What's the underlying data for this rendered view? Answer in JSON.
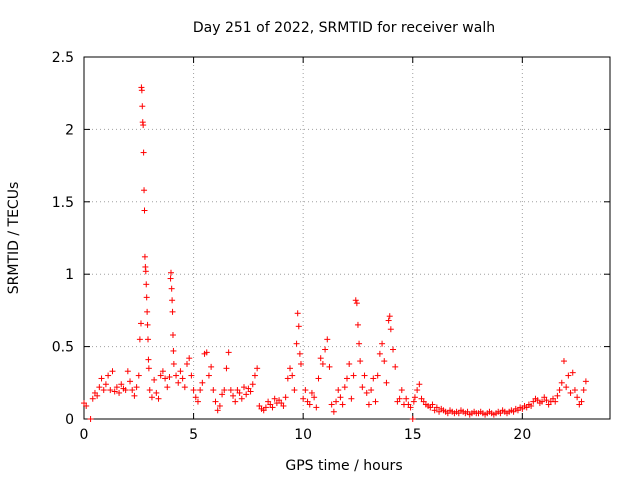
{
  "chart_data": {
    "type": "scatter",
    "title": "Day 251 of 2022, SRMTID for receiver walh",
    "xlabel": "GPS time / hours",
    "ylabel": "SRMTID / TECUs",
    "xlim": [
      0,
      24
    ],
    "ylim": [
      0,
      2.5
    ],
    "x_ticks": [
      0,
      5,
      10,
      15,
      20
    ],
    "y_ticks": [
      0,
      0.5,
      1,
      1.5,
      2,
      2.5
    ],
    "x_tick_labels": [
      "0",
      "5",
      "10",
      "15",
      "20"
    ],
    "y_tick_labels": [
      "0",
      "0.5",
      "1",
      "1.5",
      "2",
      "2.5"
    ],
    "grid": true,
    "marker": "+",
    "color": "#ff0000",
    "series": [
      {
        "name": "SRMTID",
        "points": [
          [
            0.0,
            0.11
          ],
          [
            0.1,
            0.09
          ],
          [
            0.3,
            0.0
          ],
          [
            0.4,
            0.14
          ],
          [
            0.5,
            0.18
          ],
          [
            0.6,
            0.16
          ],
          [
            0.7,
            0.22
          ],
          [
            0.8,
            0.28
          ],
          [
            0.9,
            0.2
          ],
          [
            1.0,
            0.24
          ],
          [
            1.1,
            0.3
          ],
          [
            1.2,
            0.2
          ],
          [
            1.3,
            0.33
          ],
          [
            1.4,
            0.19
          ],
          [
            1.5,
            0.22
          ],
          [
            1.6,
            0.18
          ],
          [
            1.7,
            0.24
          ],
          [
            1.8,
            0.21
          ],
          [
            1.9,
            0.2
          ],
          [
            2.0,
            0.33
          ],
          [
            2.1,
            0.26
          ],
          [
            2.2,
            0.2
          ],
          [
            2.3,
            0.16
          ],
          [
            2.4,
            0.22
          ],
          [
            2.5,
            0.3
          ],
          [
            2.55,
            0.55
          ],
          [
            2.6,
            0.66
          ],
          [
            2.62,
            2.29
          ],
          [
            2.64,
            2.27
          ],
          [
            2.66,
            2.16
          ],
          [
            2.68,
            2.05
          ],
          [
            2.7,
            2.03
          ],
          [
            2.72,
            1.84
          ],
          [
            2.74,
            1.58
          ],
          [
            2.76,
            1.44
          ],
          [
            2.78,
            1.12
          ],
          [
            2.8,
            1.05
          ],
          [
            2.82,
            1.02
          ],
          [
            2.84,
            0.93
          ],
          [
            2.86,
            0.84
          ],
          [
            2.88,
            0.74
          ],
          [
            2.9,
            0.65
          ],
          [
            2.92,
            0.55
          ],
          [
            2.94,
            0.41
          ],
          [
            2.96,
            0.35
          ],
          [
            3.0,
            0.2
          ],
          [
            3.1,
            0.15
          ],
          [
            3.2,
            0.27
          ],
          [
            3.3,
            0.18
          ],
          [
            3.4,
            0.14
          ],
          [
            3.5,
            0.3
          ],
          [
            3.6,
            0.33
          ],
          [
            3.7,
            0.28
          ],
          [
            3.8,
            0.22
          ],
          [
            3.9,
            0.29
          ],
          [
            3.95,
            0.97
          ],
          [
            3.97,
            1.01
          ],
          [
            4.0,
            0.9
          ],
          [
            4.02,
            0.82
          ],
          [
            4.04,
            0.74
          ],
          [
            4.06,
            0.58
          ],
          [
            4.08,
            0.47
          ],
          [
            4.1,
            0.38
          ],
          [
            4.2,
            0.3
          ],
          [
            4.3,
            0.25
          ],
          [
            4.4,
            0.33
          ],
          [
            4.5,
            0.28
          ],
          [
            4.6,
            0.22
          ],
          [
            4.7,
            0.38
          ],
          [
            4.8,
            0.42
          ],
          [
            4.9,
            0.3
          ],
          [
            5.0,
            0.2
          ],
          [
            5.1,
            0.15
          ],
          [
            5.2,
            0.12
          ],
          [
            5.3,
            0.2
          ],
          [
            5.4,
            0.25
          ],
          [
            5.5,
            0.45
          ],
          [
            5.6,
            0.46
          ],
          [
            5.7,
            0.3
          ],
          [
            5.8,
            0.36
          ],
          [
            5.9,
            0.2
          ],
          [
            6.0,
            0.12
          ],
          [
            6.1,
            0.06
          ],
          [
            6.2,
            0.09
          ],
          [
            6.3,
            0.17
          ],
          [
            6.4,
            0.2
          ],
          [
            6.5,
            0.35
          ],
          [
            6.6,
            0.46
          ],
          [
            6.7,
            0.2
          ],
          [
            6.8,
            0.16
          ],
          [
            6.9,
            0.12
          ],
          [
            7.0,
            0.2
          ],
          [
            7.1,
            0.18
          ],
          [
            7.2,
            0.14
          ],
          [
            7.3,
            0.22
          ],
          [
            7.4,
            0.17
          ],
          [
            7.5,
            0.21
          ],
          [
            7.6,
            0.19
          ],
          [
            7.7,
            0.24
          ],
          [
            7.8,
            0.3
          ],
          [
            7.9,
            0.35
          ],
          [
            8.0,
            0.09
          ],
          [
            8.1,
            0.07
          ],
          [
            8.2,
            0.06
          ],
          [
            8.3,
            0.08
          ],
          [
            8.4,
            0.12
          ],
          [
            8.5,
            0.1
          ],
          [
            8.6,
            0.08
          ],
          [
            8.7,
            0.14
          ],
          [
            8.8,
            0.11
          ],
          [
            8.9,
            0.13
          ],
          [
            9.0,
            0.11
          ],
          [
            9.1,
            0.09
          ],
          [
            9.2,
            0.15
          ],
          [
            9.3,
            0.28
          ],
          [
            9.4,
            0.35
          ],
          [
            9.5,
            0.3
          ],
          [
            9.6,
            0.2
          ],
          [
            9.7,
            0.52
          ],
          [
            9.75,
            0.73
          ],
          [
            9.8,
            0.64
          ],
          [
            9.85,
            0.45
          ],
          [
            9.9,
            0.38
          ],
          [
            10.0,
            0.14
          ],
          [
            10.1,
            0.2
          ],
          [
            10.2,
            0.12
          ],
          [
            10.3,
            0.1
          ],
          [
            10.4,
            0.18
          ],
          [
            10.5,
            0.15
          ],
          [
            10.6,
            0.08
          ],
          [
            10.7,
            0.28
          ],
          [
            10.8,
            0.42
          ],
          [
            10.9,
            0.38
          ],
          [
            11.0,
            0.48
          ],
          [
            11.1,
            0.55
          ],
          [
            11.2,
            0.36
          ],
          [
            11.3,
            0.1
          ],
          [
            11.4,
            0.05
          ],
          [
            11.5,
            0.12
          ],
          [
            11.6,
            0.2
          ],
          [
            11.7,
            0.15
          ],
          [
            11.8,
            0.1
          ],
          [
            11.9,
            0.22
          ],
          [
            12.0,
            0.28
          ],
          [
            12.1,
            0.38
          ],
          [
            12.2,
            0.14
          ],
          [
            12.3,
            0.3
          ],
          [
            12.4,
            0.82
          ],
          [
            12.45,
            0.8
          ],
          [
            12.5,
            0.65
          ],
          [
            12.55,
            0.52
          ],
          [
            12.6,
            0.4
          ],
          [
            12.7,
            0.22
          ],
          [
            12.8,
            0.3
          ],
          [
            12.9,
            0.18
          ],
          [
            13.0,
            0.1
          ],
          [
            13.1,
            0.2
          ],
          [
            13.2,
            0.28
          ],
          [
            13.3,
            0.12
          ],
          [
            13.4,
            0.3
          ],
          [
            13.5,
            0.45
          ],
          [
            13.6,
            0.52
          ],
          [
            13.7,
            0.4
          ],
          [
            13.8,
            0.25
          ],
          [
            13.9,
            0.68
          ],
          [
            13.95,
            0.71
          ],
          [
            14.0,
            0.62
          ],
          [
            14.1,
            0.48
          ],
          [
            14.2,
            0.36
          ],
          [
            14.3,
            0.12
          ],
          [
            14.4,
            0.14
          ],
          [
            14.5,
            0.2
          ],
          [
            14.6,
            0.1
          ],
          [
            14.7,
            0.14
          ],
          [
            14.8,
            0.1
          ],
          [
            14.9,
            0.08
          ],
          [
            15.0,
            0.0
          ],
          [
            15.05,
            0.12
          ],
          [
            15.1,
            0.15
          ],
          [
            15.2,
            0.2
          ],
          [
            15.3,
            0.24
          ],
          [
            15.4,
            0.14
          ],
          [
            15.5,
            0.12
          ],
          [
            15.6,
            0.1
          ],
          [
            15.7,
            0.09
          ],
          [
            15.8,
            0.08
          ],
          [
            15.9,
            0.1
          ],
          [
            16.0,
            0.06
          ],
          [
            16.1,
            0.08
          ],
          [
            16.2,
            0.05
          ],
          [
            16.3,
            0.07
          ],
          [
            16.4,
            0.06
          ],
          [
            16.5,
            0.05
          ],
          [
            16.6,
            0.04
          ],
          [
            16.7,
            0.06
          ],
          [
            16.8,
            0.05
          ],
          [
            16.9,
            0.04
          ],
          [
            17.0,
            0.05
          ],
          [
            17.1,
            0.04
          ],
          [
            17.2,
            0.06
          ],
          [
            17.3,
            0.05
          ],
          [
            17.4,
            0.04
          ],
          [
            17.5,
            0.05
          ],
          [
            17.6,
            0.03
          ],
          [
            17.7,
            0.04
          ],
          [
            17.8,
            0.05
          ],
          [
            17.9,
            0.04
          ],
          [
            18.0,
            0.04
          ],
          [
            18.1,
            0.05
          ],
          [
            18.2,
            0.04
          ],
          [
            18.3,
            0.03
          ],
          [
            18.4,
            0.04
          ],
          [
            18.5,
            0.05
          ],
          [
            18.6,
            0.04
          ],
          [
            18.7,
            0.03
          ],
          [
            18.8,
            0.04
          ],
          [
            18.9,
            0.05
          ],
          [
            19.0,
            0.04
          ],
          [
            19.1,
            0.06
          ],
          [
            19.2,
            0.05
          ],
          [
            19.3,
            0.04
          ],
          [
            19.4,
            0.05
          ],
          [
            19.5,
            0.06
          ],
          [
            19.6,
            0.05
          ],
          [
            19.7,
            0.07
          ],
          [
            19.8,
            0.06
          ],
          [
            19.9,
            0.08
          ],
          [
            20.0,
            0.07
          ],
          [
            20.1,
            0.09
          ],
          [
            20.2,
            0.08
          ],
          [
            20.3,
            0.1
          ],
          [
            20.4,
            0.09
          ],
          [
            20.5,
            0.12
          ],
          [
            20.6,
            0.14
          ],
          [
            20.7,
            0.13
          ],
          [
            20.8,
            0.11
          ],
          [
            20.9,
            0.12
          ],
          [
            21.0,
            0.15
          ],
          [
            21.1,
            0.13
          ],
          [
            21.2,
            0.1
          ],
          [
            21.3,
            0.12
          ],
          [
            21.4,
            0.14
          ],
          [
            21.5,
            0.12
          ],
          [
            21.6,
            0.16
          ],
          [
            21.7,
            0.2
          ],
          [
            21.8,
            0.25
          ],
          [
            21.9,
            0.4
          ],
          [
            22.0,
            0.22
          ],
          [
            22.1,
            0.3
          ],
          [
            22.2,
            0.18
          ],
          [
            22.3,
            0.32
          ],
          [
            22.4,
            0.2
          ],
          [
            22.5,
            0.15
          ],
          [
            22.6,
            0.1
          ],
          [
            22.7,
            0.12
          ],
          [
            22.8,
            0.2
          ],
          [
            22.9,
            0.26
          ]
        ]
      }
    ]
  }
}
